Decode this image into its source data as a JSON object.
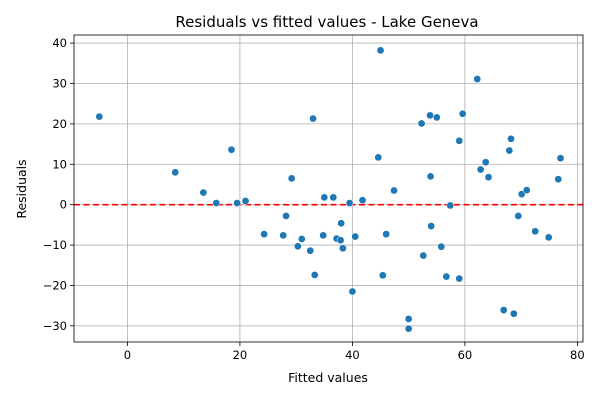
{
  "chart_data": {
    "type": "scatter",
    "title": "Residuals vs fitted values - Lake Geneva",
    "xlabel": "Fitted values",
    "ylabel": "Residuals",
    "xlim": [
      -9.5,
      81
    ],
    "ylim": [
      -34,
      42
    ],
    "xticks": [
      0,
      20,
      40,
      60,
      80
    ],
    "yticks": [
      -30,
      -20,
      -10,
      0,
      10,
      20,
      30,
      40
    ],
    "grid": true,
    "reference_line": {
      "y": 0,
      "style": "dashed"
    },
    "colors": {
      "points": "#1f77b4",
      "reference_line": "#ff0000"
    },
    "series": [
      {
        "points": [
          [
            -5,
            21.8
          ],
          [
            8.5,
            8.0
          ],
          [
            13.5,
            3.0
          ],
          [
            15.8,
            0.4
          ],
          [
            18.5,
            13.6
          ],
          [
            19.5,
            0.4
          ],
          [
            21.0,
            0.9
          ],
          [
            24.3,
            -7.3
          ],
          [
            27.7,
            -7.6
          ],
          [
            28.2,
            -2.8
          ],
          [
            29.2,
            6.5
          ],
          [
            30.3,
            -10.3
          ],
          [
            31.0,
            -8.5
          ],
          [
            32.5,
            -11.4
          ],
          [
            33.0,
            21.3
          ],
          [
            33.3,
            -17.4
          ],
          [
            34.8,
            -7.6
          ],
          [
            35.0,
            1.8
          ],
          [
            36.6,
            1.8
          ],
          [
            37.2,
            -8.4
          ],
          [
            37.9,
            -8.8
          ],
          [
            38.0,
            -4.6
          ],
          [
            38.3,
            -10.8
          ],
          [
            39.5,
            0.4
          ],
          [
            40.0,
            -21.5
          ],
          [
            40.5,
            -7.9
          ],
          [
            41.8,
            1.1
          ],
          [
            44.6,
            11.7
          ],
          [
            45.0,
            38.2
          ],
          [
            45.4,
            -17.5
          ],
          [
            46.0,
            -7.3
          ],
          [
            47.4,
            3.5
          ],
          [
            50.0,
            -28.3
          ],
          [
            50.0,
            -30.7
          ],
          [
            52.3,
            20.1
          ],
          [
            52.6,
            -12.6
          ],
          [
            53.8,
            22.1
          ],
          [
            53.9,
            7.0
          ],
          [
            54.0,
            -5.3
          ],
          [
            55.0,
            21.6
          ],
          [
            55.8,
            -10.4
          ],
          [
            56.7,
            -17.8
          ],
          [
            57.4,
            -0.2
          ],
          [
            59.0,
            15.8
          ],
          [
            59.0,
            -18.3
          ],
          [
            59.6,
            22.5
          ],
          [
            62.2,
            31.1
          ],
          [
            62.8,
            8.7
          ],
          [
            63.7,
            10.5
          ],
          [
            64.2,
            6.8
          ],
          [
            66.9,
            -26.1
          ],
          [
            67.9,
            13.4
          ],
          [
            68.2,
            16.3
          ],
          [
            68.7,
            -27.0
          ],
          [
            69.5,
            -2.8
          ],
          [
            70.1,
            2.6
          ],
          [
            71.0,
            3.6
          ],
          [
            72.5,
            -6.6
          ],
          [
            74.9,
            -8.1
          ],
          [
            76.6,
            6.3
          ],
          [
            77.0,
            11.5
          ]
        ]
      }
    ]
  }
}
